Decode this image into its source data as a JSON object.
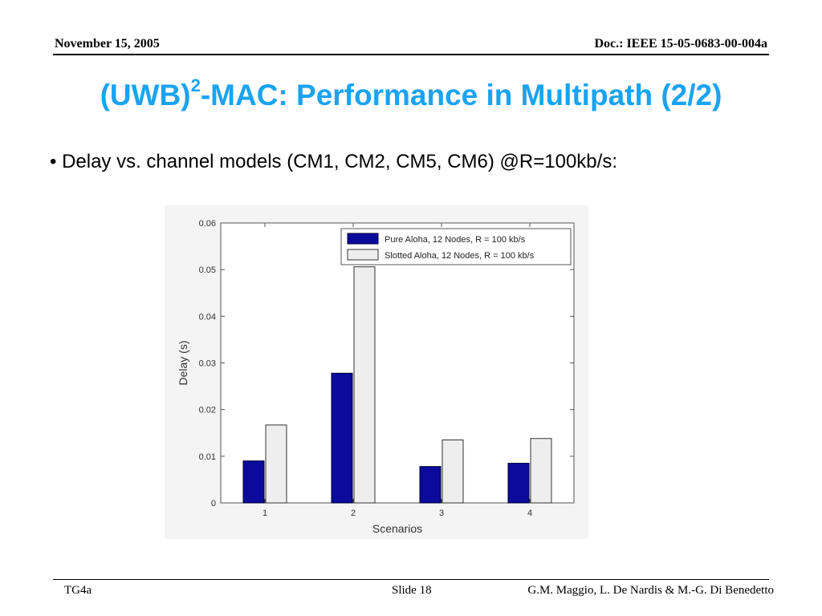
{
  "header": {
    "date": "November 15, 2005",
    "doc": "Doc.: IEEE 15-05-0683-00-004a"
  },
  "slide": {
    "title_pre": "(UWB)",
    "title_sup": "2",
    "title_post": "-MAC: Performance in Multipath  (2/2)",
    "bullet": "• Delay vs. channel models (CM1, CM2, CM5, CM6) @R=100kb/s:"
  },
  "footer": {
    "left": "TG4a",
    "middle": "Slide 18",
    "right": "G.M. Maggio, L. De Nardis & M.-G. Di Benedetto"
  },
  "colors": {
    "title": "#1aa3f0",
    "series_pure": "#0a0a9c",
    "series_slotted": "#eeeeee",
    "chart_bg": "#f4f4f4"
  },
  "chart_data": {
    "type": "bar",
    "categories": [
      "1",
      "2",
      "3",
      "4"
    ],
    "series": [
      {
        "name": "Pure Aloha, 12 Nodes, R = 100 kb/s",
        "values": [
          0.009,
          0.0278,
          0.0078,
          0.0085
        ]
      },
      {
        "name": "Slotted Aloha, 12 Nodes, R = 100 kb/s",
        "values": [
          0.0167,
          0.0506,
          0.0135,
          0.0138
        ]
      }
    ],
    "title": "",
    "xlabel": "Scenarios",
    "ylabel": "Delay (s)",
    "ylim": [
      0,
      0.06
    ],
    "yticks": [
      "0",
      "0.01",
      "0.02",
      "0.03",
      "0.04",
      "0.05",
      "0.06"
    ],
    "grid": false,
    "legend_position": "top-right"
  }
}
